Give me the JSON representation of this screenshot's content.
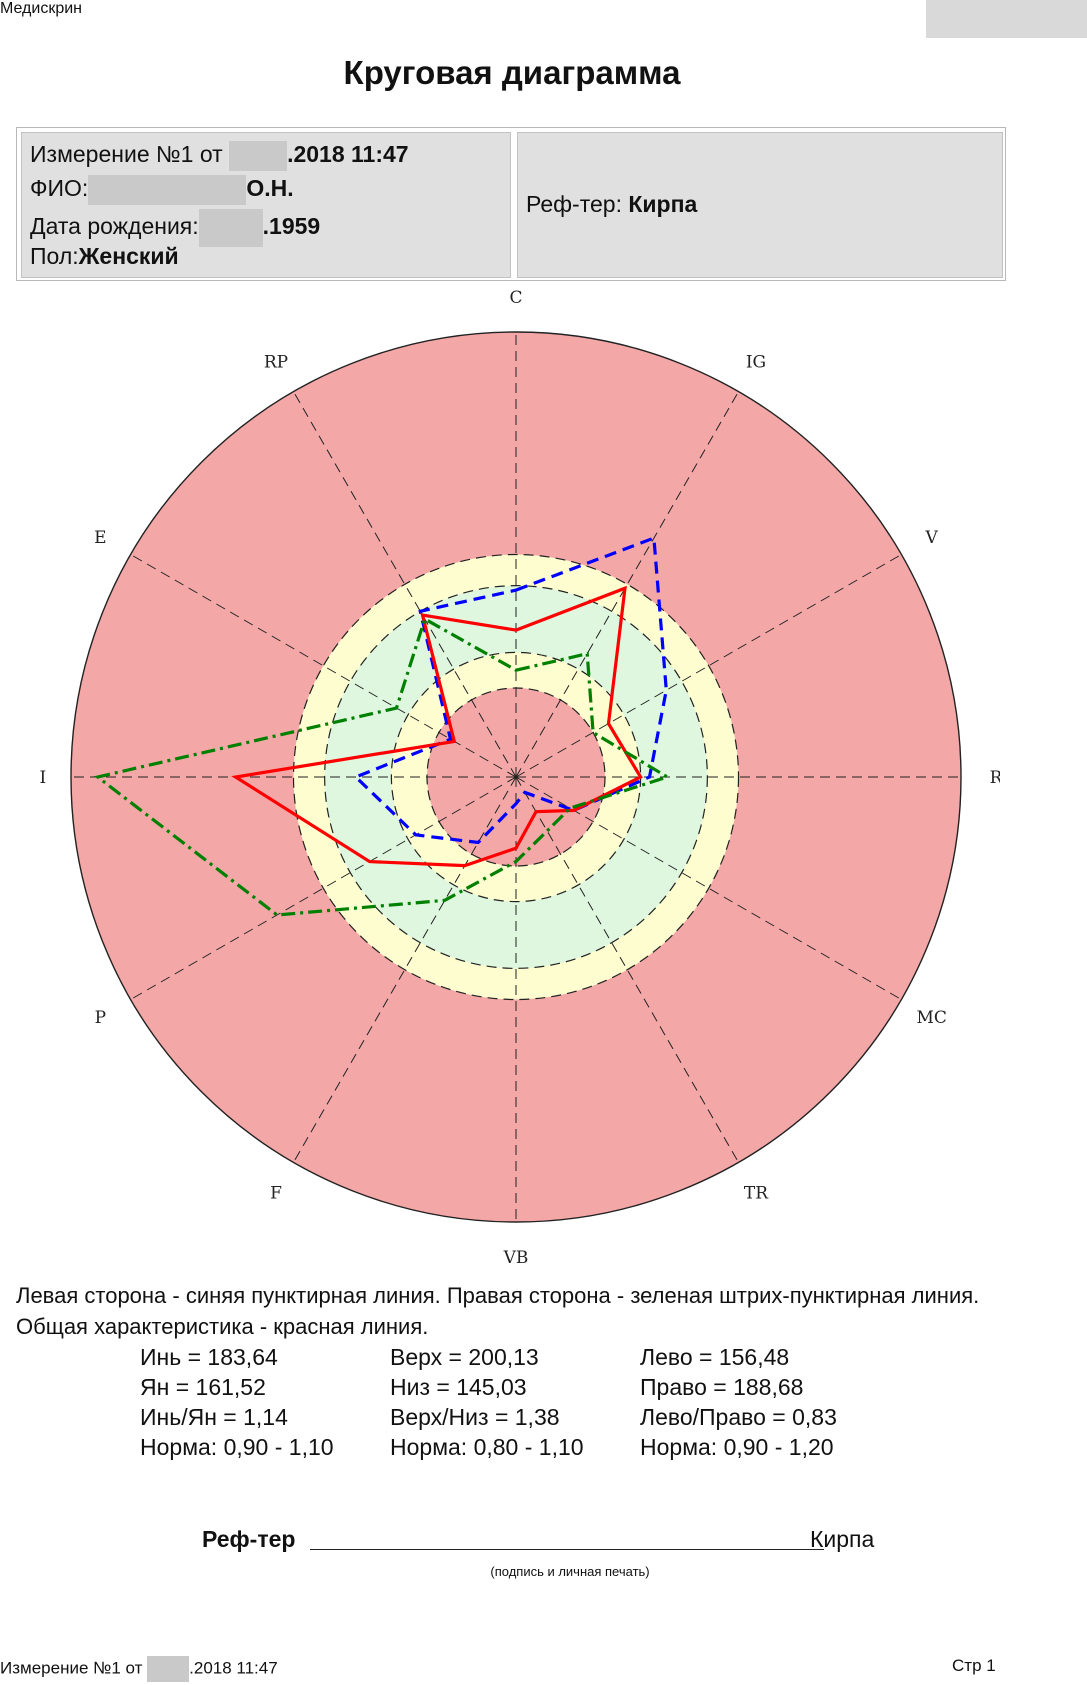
{
  "app_name": "Медискрин",
  "title": "Круговая диаграмма",
  "info": {
    "measure_prefix": "Измерение №1 от ",
    "measure_suffix": ".2018 11:47",
    "fio_label": "ФИО:",
    "fio_suffix": "О.Н.",
    "birth_label": "Дата рождения:",
    "birth_suffix": ".1959",
    "sex_label": "Пол:",
    "sex_value": "Женский",
    "ref_label": "Реф-тер: ",
    "ref_value": "Кирпа"
  },
  "chart_data": {
    "type": "radar",
    "axes": [
      "C",
      "IG",
      "V",
      "R",
      "MC",
      "TR",
      "VB",
      "F",
      "P",
      "GI",
      "E",
      "RP"
    ],
    "zones": [
      {
        "from": 0.0,
        "to": 0.2,
        "color": "#f4a7a7"
      },
      {
        "from": 0.2,
        "to": 0.28,
        "color": "#fdfdd0"
      },
      {
        "from": 0.28,
        "to": 0.43,
        "color": "#def7de"
      },
      {
        "from": 0.43,
        "to": 0.5,
        "color": "#fdfdd0"
      },
      {
        "from": 0.5,
        "to": 1.0,
        "color": "#f4a7a7"
      }
    ],
    "gridlines": [
      0.2,
      0.28,
      0.43,
      0.5
    ],
    "series": [
      {
        "color": "#0000ff",
        "dash": "12,7",
        "values": [
          0.42,
          0.62,
          0.39,
          0.3,
          0.15,
          0.04,
          0.06,
          0.17,
          0.26,
          0.36,
          0.17,
          0.43
        ]
      },
      {
        "color": "#ff0000",
        "dash": "",
        "values": [
          0.33,
          0.49,
          0.24,
          0.28,
          0.15,
          0.09,
          0.16,
          0.23,
          0.38,
          0.63,
          0.16,
          0.42
        ]
      },
      {
        "color": "#008000",
        "dash": "14,5,3,5",
        "values": [
          0.24,
          0.32,
          0.2,
          0.34,
          0.14,
          0.14,
          0.19,
          0.32,
          0.62,
          0.94,
          0.31,
          0.41
        ]
      }
    ]
  },
  "legend_note": "Левая сторона - синяя пунктирная линия. Правая сторона - зеленая штрих-пунктирная линия. Общая характеристика - красная линия.",
  "stats": [
    [
      "Инь = 183,64",
      "Ян = 161,52",
      "Инь/Ян = 1,14",
      "Норма: 0,90 - 1,10"
    ],
    [
      "Верх = 200,13",
      "Низ = 145,03",
      "Верх/Низ = 1,38",
      "Норма: 0,80 - 1,10"
    ],
    [
      "Лево = 156,48",
      "Право = 188,68",
      "Лево/Право = 0,83",
      "Норма: 0,90 - 1,20"
    ]
  ],
  "signature": {
    "label": "Реф-тер",
    "name": "Кирпа",
    "caption": "(подпись и личная печать)"
  },
  "footer": {
    "left_prefix": "Измерение №1 от ",
    "left_suffix": ".2018 11:47",
    "right": "Стр 1"
  }
}
